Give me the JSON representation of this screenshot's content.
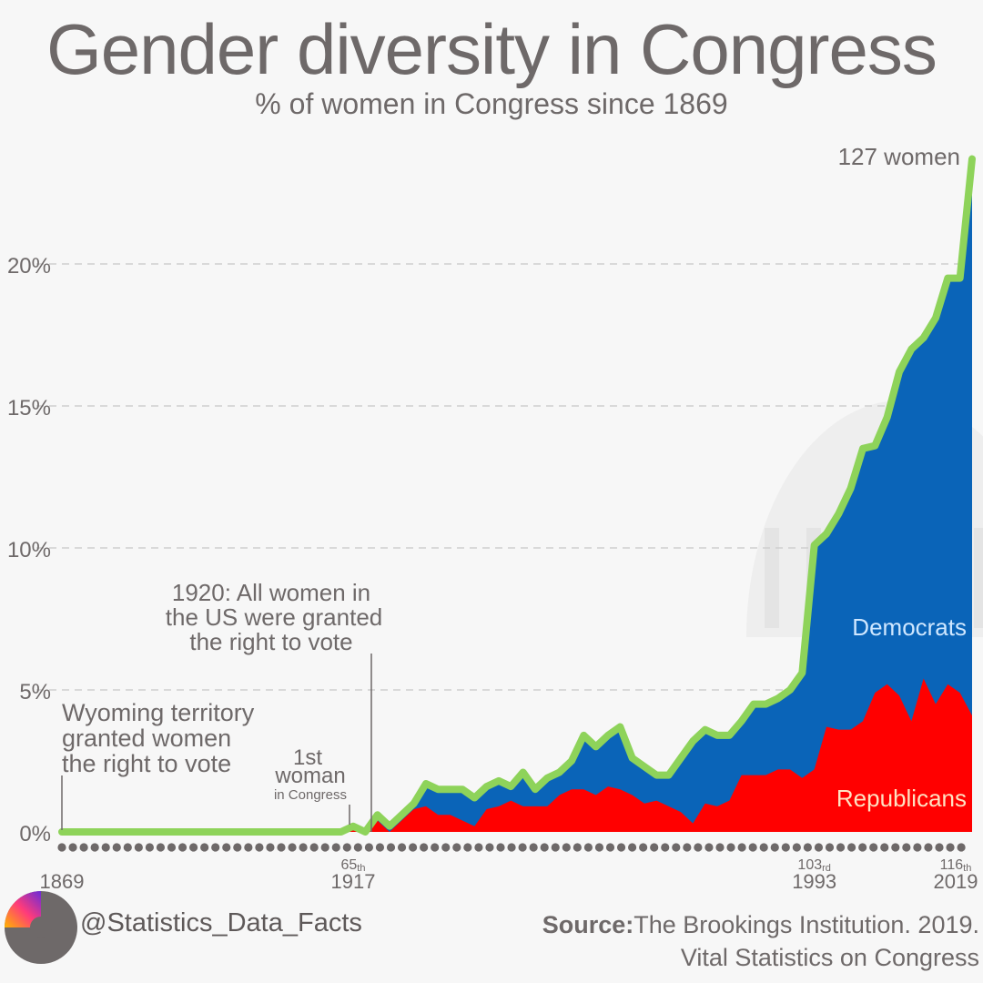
{
  "header": {
    "title": "Gender diversity in Congress",
    "subtitle": "% of women in Congress since 1869"
  },
  "colors": {
    "democrats": "#0a64b8",
    "republicans": "#ff0000",
    "total_line": "#8ed35a",
    "grid": "#cfcfcf",
    "text": "#6e6969",
    "dots": "#6e6969"
  },
  "chart_data": {
    "type": "area",
    "title": "Gender diversity in Congress",
    "subtitle": "% of women in Congress since 1869",
    "xlabel": "",
    "ylabel": "",
    "xlim": [
      1869,
      2019
    ],
    "ylim": [
      0,
      25
    ],
    "y_ticks": [
      0,
      5,
      10,
      15,
      20
    ],
    "y_tick_labels": [
      "0%",
      "5%",
      "10%",
      "15%",
      "20%"
    ],
    "grid": true,
    "x_tick_labels": [
      {
        "year": 1917,
        "congress": "65",
        "suffix": "th",
        "label": "1917"
      },
      {
        "year": 1993,
        "congress": "103",
        "suffix": "rd",
        "label": "1993"
      },
      {
        "year": 2019,
        "congress": "116",
        "suffix": "th",
        "label": "2019"
      }
    ],
    "x_start_label": "1869",
    "series": [
      {
        "name": "Total women",
        "x": [
          1869,
          1915,
          1917,
          1919,
          1921,
          1923,
          1925,
          1927,
          1929,
          1931,
          1933,
          1935,
          1937,
          1939,
          1941,
          1943,
          1945,
          1947,
          1949,
          1951,
          1953,
          1955,
          1957,
          1959,
          1961,
          1963,
          1965,
          1967,
          1969,
          1971,
          1973,
          1975,
          1977,
          1979,
          1981,
          1983,
          1985,
          1987,
          1989,
          1991,
          1993,
          1995,
          1997,
          1999,
          2001,
          2003,
          2005,
          2007,
          2009,
          2011,
          2013,
          2015,
          2017,
          2019
        ],
        "values": [
          0,
          0,
          0.2,
          0,
          0.6,
          0.2,
          0.6,
          1,
          1.7,
          1.5,
          1.5,
          1.5,
          1.2,
          1.6,
          1.8,
          1.6,
          2.1,
          1.5,
          1.9,
          2.1,
          2.5,
          3.4,
          3,
          3.4,
          3.7,
          2.6,
          2.3,
          2,
          2,
          2.6,
          3.2,
          3.6,
          3.4,
          3.4,
          3.9,
          4.5,
          4.5,
          4.7,
          5,
          5.6,
          10.1,
          10.5,
          11.2,
          12.1,
          13.5,
          13.6,
          14.6,
          16.2,
          17,
          17.4,
          18.1,
          19.5,
          19.5,
          23.7
        ]
      },
      {
        "name": "Republicans",
        "x": [
          1869,
          1915,
          1917,
          1919,
          1921,
          1923,
          1925,
          1927,
          1929,
          1931,
          1933,
          1935,
          1937,
          1939,
          1941,
          1943,
          1945,
          1947,
          1949,
          1951,
          1953,
          1955,
          1957,
          1959,
          1961,
          1963,
          1965,
          1967,
          1969,
          1971,
          1973,
          1975,
          1977,
          1979,
          1981,
          1983,
          1985,
          1987,
          1989,
          1991,
          1993,
          1995,
          1997,
          1999,
          2001,
          2003,
          2005,
          2007,
          2009,
          2011,
          2013,
          2015,
          2017,
          2019
        ],
        "values": [
          0,
          0,
          0.2,
          0,
          0.4,
          0,
          0.4,
          0.8,
          0.9,
          0.6,
          0.6,
          0.4,
          0.2,
          0.8,
          0.9,
          1.1,
          0.9,
          0.9,
          0.9,
          1.3,
          1.5,
          1.5,
          1.3,
          1.6,
          1.5,
          1.3,
          1,
          1.1,
          0.9,
          0.7,
          0.3,
          1,
          0.9,
          1.1,
          2,
          2,
          2,
          2.2,
          2.2,
          1.9,
          2.2,
          3.7,
          3.6,
          3.6,
          3.9,
          4.9,
          5.2,
          4.8,
          3.9,
          5.4,
          4.5,
          5.2,
          4.9,
          4.1
        ]
      },
      {
        "name": "Democrats",
        "x": [
          1869,
          1915,
          1917,
          1919,
          1921,
          1923,
          1925,
          1927,
          1929,
          1931,
          1933,
          1935,
          1937,
          1939,
          1941,
          1943,
          1945,
          1947,
          1949,
          1951,
          1953,
          1955,
          1957,
          1959,
          1961,
          1963,
          1965,
          1967,
          1969,
          1971,
          1973,
          1975,
          1977,
          1979,
          1981,
          1983,
          1985,
          1987,
          1989,
          1991,
          1993,
          1995,
          1997,
          1999,
          2001,
          2003,
          2005,
          2007,
          2009,
          2011,
          2013,
          2015,
          2017,
          2019
        ],
        "values": [
          0,
          0,
          0,
          0,
          0.2,
          0.2,
          0.2,
          0.2,
          0.8,
          0.9,
          0.9,
          1.1,
          1,
          0.8,
          0.9,
          0.5,
          1.2,
          0.6,
          1,
          0.8,
          1,
          1.9,
          1.7,
          1.8,
          2.2,
          1.3,
          1.3,
          0.9,
          1.1,
          1.9,
          2.9,
          2.6,
          2.5,
          2.3,
          1.9,
          2.5,
          2.5,
          2.5,
          2.8,
          3.7,
          7.9,
          6.8,
          7.6,
          8.5,
          9.6,
          8.7,
          9.4,
          11.4,
          13.1,
          12,
          13.6,
          14.3,
          14.6,
          19.6
        ]
      }
    ],
    "series_labels": {
      "democrats": "Democrats",
      "republicans": "Republicans"
    },
    "annotations": {
      "end_value": "127 women",
      "wyoming": {
        "year": 1869,
        "line1": "Wyoming territory",
        "line2": "granted women",
        "line3": "the right to vote"
      },
      "first_woman": {
        "year": 1917,
        "line1": "1st",
        "line2": "woman",
        "line3": "in Congress"
      },
      "suffrage": {
        "year": 1920,
        "line1": "1920: All women in",
        "line2": "the US were granted",
        "line3": "the right to vote"
      }
    }
  },
  "footer": {
    "handle": "@Statistics_Data_Facts",
    "source_label": "Source:",
    "source_text": "The Brookings Institution. 2019.",
    "source_line2": "Vital Statistics on Congress"
  }
}
